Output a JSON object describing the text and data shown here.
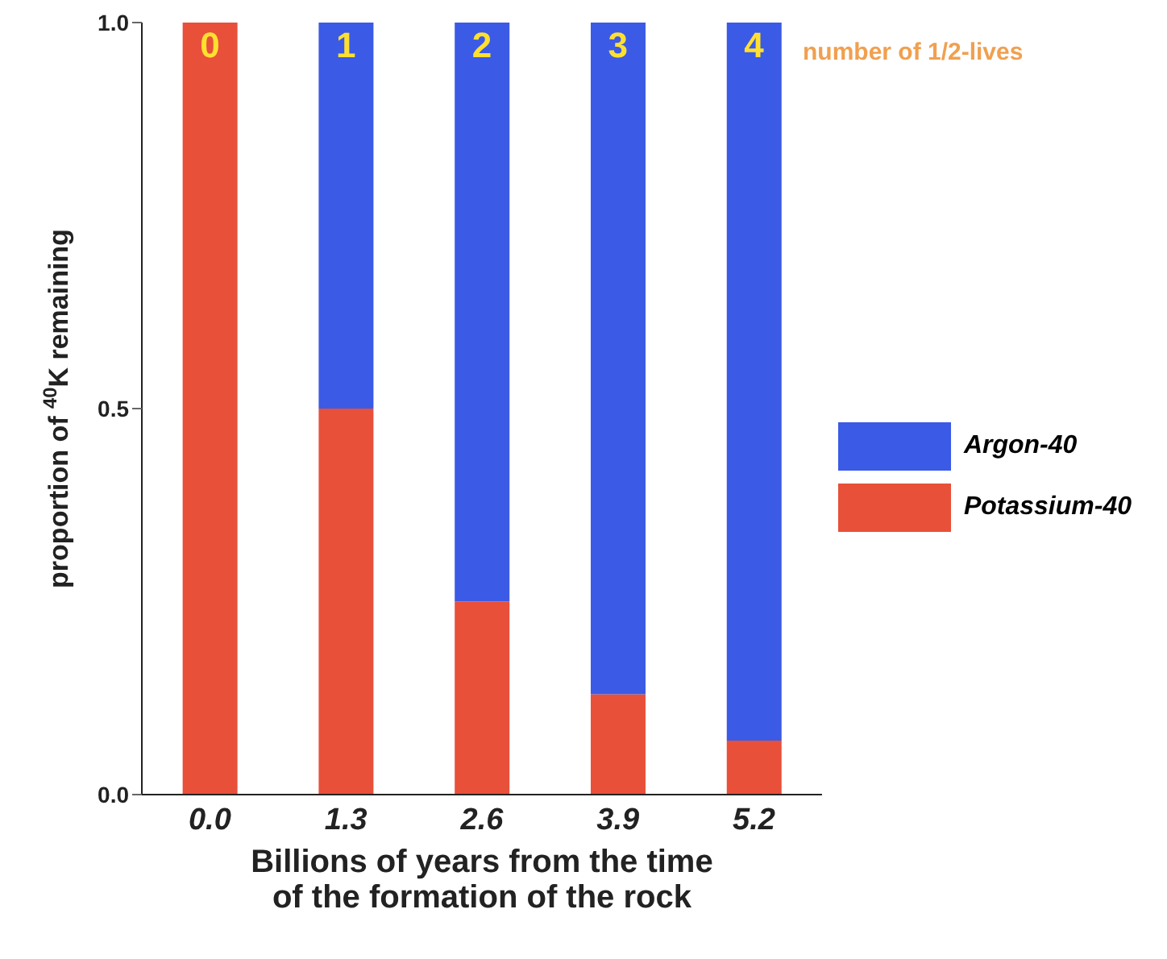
{
  "chart_data": {
    "type": "bar",
    "stacked": true,
    "categories": [
      "0.0",
      "1.3",
      "2.6",
      "3.9",
      "5.2"
    ],
    "series": [
      {
        "name": "Potassium-40",
        "color": "#e8503a",
        "values": [
          1,
          0.5,
          0.25,
          0.13,
          0.07
        ]
      },
      {
        "name": "Argon-40",
        "color": "#3b5ae6",
        "values": [
          0,
          0.5,
          0.75,
          0.87,
          0.93
        ]
      }
    ],
    "ylim": [
      0,
      1
    ],
    "yticks": [
      {
        "value": 0,
        "label": "0.0"
      },
      {
        "value": 0.5,
        "label": "0.5"
      },
      {
        "value": 1,
        "label": "1.0"
      }
    ],
    "xlabel": "Billions of years from the time\nof the formation of the rock",
    "ylabel": "proportion of $^{40}$K remaining",
    "legend": "right",
    "annotations": [
      {
        "text": "0",
        "x": "0.0",
        "y": 1
      },
      {
        "text": "1",
        "x": "1.3",
        "y": 1
      },
      {
        "text": "2",
        "x": "2.6",
        "y": 1
      },
      {
        "text": "3",
        "x": "3.9",
        "y": 1
      },
      {
        "text": "4",
        "x": "5.2",
        "y": 1
      },
      "number of 1/2-lives"
    ]
  }
}
